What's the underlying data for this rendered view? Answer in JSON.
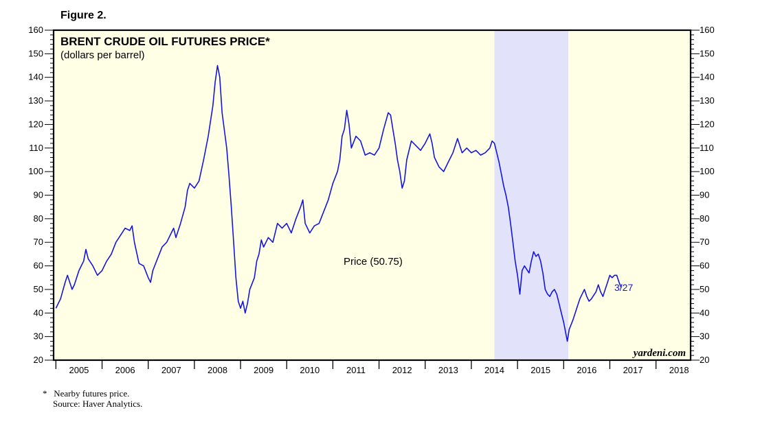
{
  "figure_label": "Figure 2.",
  "footnote": {
    "star": "*",
    "note": "Nearby futures price.",
    "source": "Source: Haver Analytics."
  },
  "colors": {
    "background": "#ffffe6",
    "shade": "#e2e2fb",
    "series": "#1414e0",
    "frame": "#000000"
  },
  "chart_data": {
    "type": "line",
    "title": "BRENT CRUDE OIL FUTURES PRICE*",
    "subtitle": "(dollars per barrel)",
    "xlabel": "",
    "ylabel": "",
    "xlim": [
      2004.95,
      2018.75
    ],
    "ylim": [
      20,
      160
    ],
    "y_ticks": [
      20,
      30,
      40,
      50,
      60,
      70,
      80,
      90,
      100,
      110,
      120,
      130,
      140,
      150,
      160
    ],
    "x_tick_labels": [
      "2005",
      "2006",
      "2007",
      "2008",
      "2009",
      "2010",
      "2011",
      "2012",
      "2013",
      "2014",
      "2015",
      "2016",
      "2017",
      "2018"
    ],
    "shaded_period": {
      "start": 2014.5,
      "end": 2016.1
    },
    "annotation": "Price (50.75)",
    "end_label": "3/27",
    "watermark": "yardeni.com",
    "series": [
      {
        "name": "Brent crude oil futures price",
        "points": [
          [
            2005.0,
            42
          ],
          [
            2005.05,
            44
          ],
          [
            2005.1,
            46
          ],
          [
            2005.2,
            53
          ],
          [
            2005.25,
            56
          ],
          [
            2005.35,
            50
          ],
          [
            2005.4,
            52
          ],
          [
            2005.5,
            58
          ],
          [
            2005.6,
            62
          ],
          [
            2005.65,
            67
          ],
          [
            2005.7,
            63
          ],
          [
            2005.8,
            60
          ],
          [
            2005.9,
            56
          ],
          [
            2006.0,
            58
          ],
          [
            2006.1,
            62
          ],
          [
            2006.2,
            65
          ],
          [
            2006.3,
            70
          ],
          [
            2006.4,
            73
          ],
          [
            2006.5,
            76
          ],
          [
            2006.6,
            75
          ],
          [
            2006.65,
            77
          ],
          [
            2006.7,
            70
          ],
          [
            2006.8,
            61
          ],
          [
            2006.9,
            60
          ],
          [
            2007.0,
            55
          ],
          [
            2007.05,
            53
          ],
          [
            2007.1,
            58
          ],
          [
            2007.2,
            63
          ],
          [
            2007.3,
            68
          ],
          [
            2007.4,
            70
          ],
          [
            2007.5,
            74
          ],
          [
            2007.55,
            76
          ],
          [
            2007.6,
            72
          ],
          [
            2007.7,
            78
          ],
          [
            2007.8,
            85
          ],
          [
            2007.85,
            92
          ],
          [
            2007.9,
            95
          ],
          [
            2008.0,
            93
          ],
          [
            2008.1,
            96
          ],
          [
            2008.2,
            105
          ],
          [
            2008.3,
            115
          ],
          [
            2008.4,
            128
          ],
          [
            2008.45,
            138
          ],
          [
            2008.5,
            145
          ],
          [
            2008.55,
            140
          ],
          [
            2008.6,
            125
          ],
          [
            2008.7,
            110
          ],
          [
            2008.75,
            98
          ],
          [
            2008.8,
            85
          ],
          [
            2008.85,
            70
          ],
          [
            2008.9,
            55
          ],
          [
            2008.95,
            45
          ],
          [
            2009.0,
            42
          ],
          [
            2009.05,
            45
          ],
          [
            2009.1,
            40
          ],
          [
            2009.15,
            44
          ],
          [
            2009.2,
            50
          ],
          [
            2009.3,
            55
          ],
          [
            2009.35,
            62
          ],
          [
            2009.4,
            65
          ],
          [
            2009.45,
            71
          ],
          [
            2009.5,
            68
          ],
          [
            2009.6,
            72
          ],
          [
            2009.7,
            70
          ],
          [
            2009.8,
            78
          ],
          [
            2009.9,
            76
          ],
          [
            2010.0,
            78
          ],
          [
            2010.1,
            74
          ],
          [
            2010.2,
            80
          ],
          [
            2010.3,
            85
          ],
          [
            2010.35,
            88
          ],
          [
            2010.4,
            78
          ],
          [
            2010.5,
            74
          ],
          [
            2010.6,
            77
          ],
          [
            2010.7,
            78
          ],
          [
            2010.8,
            83
          ],
          [
            2010.9,
            88
          ],
          [
            2011.0,
            95
          ],
          [
            2011.1,
            100
          ],
          [
            2011.15,
            105
          ],
          [
            2011.2,
            115
          ],
          [
            2011.25,
            118
          ],
          [
            2011.3,
            126
          ],
          [
            2011.35,
            120
          ],
          [
            2011.4,
            110
          ],
          [
            2011.5,
            115
          ],
          [
            2011.6,
            113
          ],
          [
            2011.7,
            107
          ],
          [
            2011.8,
            108
          ],
          [
            2011.9,
            107
          ],
          [
            2012.0,
            110
          ],
          [
            2012.1,
            118
          ],
          [
            2012.2,
            125
          ],
          [
            2012.25,
            124
          ],
          [
            2012.3,
            118
          ],
          [
            2012.35,
            112
          ],
          [
            2012.4,
            105
          ],
          [
            2012.45,
            100
          ],
          [
            2012.5,
            93
          ],
          [
            2012.55,
            96
          ],
          [
            2012.6,
            105
          ],
          [
            2012.7,
            113
          ],
          [
            2012.8,
            111
          ],
          [
            2012.9,
            109
          ],
          [
            2013.0,
            112
          ],
          [
            2013.1,
            116
          ],
          [
            2013.15,
            112
          ],
          [
            2013.2,
            106
          ],
          [
            2013.3,
            102
          ],
          [
            2013.4,
            100
          ],
          [
            2013.5,
            104
          ],
          [
            2013.6,
            108
          ],
          [
            2013.7,
            114
          ],
          [
            2013.8,
            108
          ],
          [
            2013.9,
            110
          ],
          [
            2014.0,
            108
          ],
          [
            2014.1,
            109
          ],
          [
            2014.2,
            107
          ],
          [
            2014.3,
            108
          ],
          [
            2014.4,
            110
          ],
          [
            2014.45,
            113
          ],
          [
            2014.5,
            112
          ],
          [
            2014.55,
            108
          ],
          [
            2014.6,
            104
          ],
          [
            2014.65,
            99
          ],
          [
            2014.7,
            94
          ],
          [
            2014.75,
            90
          ],
          [
            2014.8,
            85
          ],
          [
            2014.85,
            78
          ],
          [
            2014.9,
            70
          ],
          [
            2014.95,
            62
          ],
          [
            2015.0,
            56
          ],
          [
            2015.05,
            48
          ],
          [
            2015.1,
            58
          ],
          [
            2015.15,
            60
          ],
          [
            2015.25,
            57
          ],
          [
            2015.3,
            62
          ],
          [
            2015.35,
            66
          ],
          [
            2015.4,
            64
          ],
          [
            2015.45,
            65
          ],
          [
            2015.5,
            62
          ],
          [
            2015.55,
            57
          ],
          [
            2015.6,
            50
          ],
          [
            2015.65,
            48
          ],
          [
            2015.7,
            47
          ],
          [
            2015.75,
            49
          ],
          [
            2015.8,
            50
          ],
          [
            2015.85,
            48
          ],
          [
            2015.9,
            44
          ],
          [
            2015.95,
            40
          ],
          [
            2016.0,
            36
          ],
          [
            2016.05,
            31
          ],
          [
            2016.08,
            28
          ],
          [
            2016.12,
            33
          ],
          [
            2016.2,
            37
          ],
          [
            2016.25,
            40
          ],
          [
            2016.3,
            43
          ],
          [
            2016.35,
            46
          ],
          [
            2016.4,
            48
          ],
          [
            2016.45,
            50
          ],
          [
            2016.5,
            47
          ],
          [
            2016.55,
            45
          ],
          [
            2016.6,
            46
          ],
          [
            2016.7,
            49
          ],
          [
            2016.75,
            52
          ],
          [
            2016.8,
            49
          ],
          [
            2016.85,
            47
          ],
          [
            2016.9,
            50
          ],
          [
            2016.95,
            53
          ],
          [
            2017.0,
            56
          ],
          [
            2017.05,
            55
          ],
          [
            2017.1,
            56
          ],
          [
            2017.15,
            56
          ],
          [
            2017.2,
            53
          ],
          [
            2017.25,
            50.75
          ]
        ]
      }
    ]
  }
}
